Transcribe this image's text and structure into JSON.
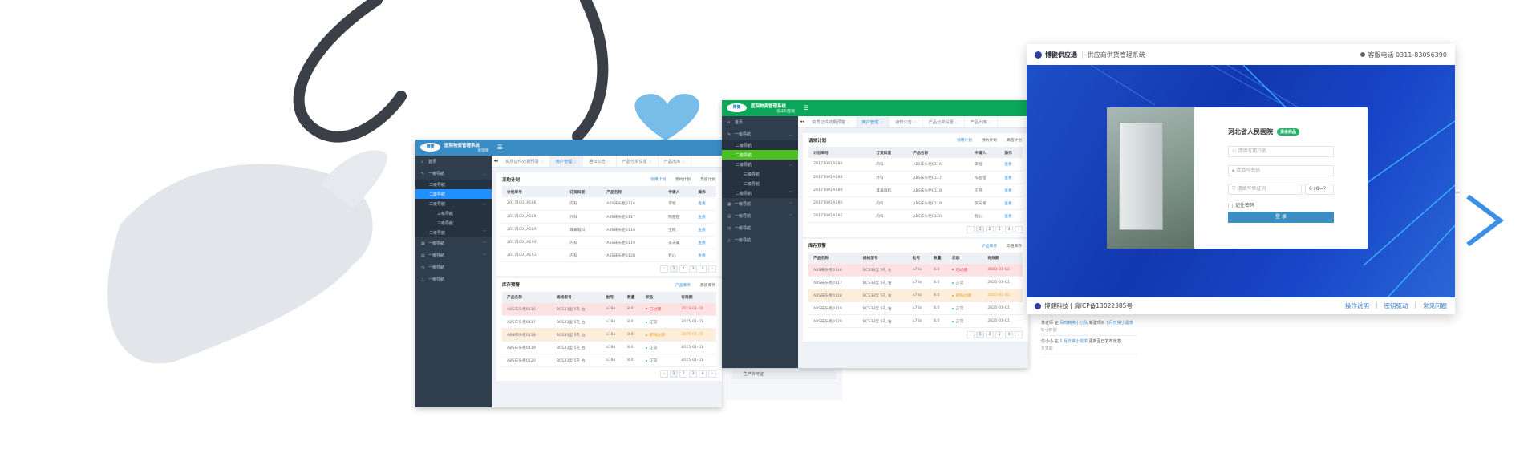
{
  "admin_common": {
    "tabs": [
      "资质证件效期预警",
      "用户管理",
      "通知公告",
      "产品分类设置",
      "产品出库"
    ],
    "active_tab": 1,
    "sidebar": [
      {
        "label": "首页",
        "icon": "home",
        "level": 0
      },
      {
        "label": "一级导航",
        "icon": "edit",
        "level": 1,
        "chevron": "up"
      },
      {
        "label": "二级导航",
        "level": 2
      },
      {
        "label": "二级导航",
        "level": 2,
        "active": true
      },
      {
        "label": "二级导航",
        "level": 2,
        "chevron": "up"
      },
      {
        "label": "三级导航",
        "level": 3
      },
      {
        "label": "三级导航",
        "level": 3
      },
      {
        "label": "二级导航",
        "level": 2,
        "chevron": "down"
      },
      {
        "label": "一级导航",
        "icon": "grid",
        "level": 1,
        "chevron": "down"
      },
      {
        "label": "一级导航",
        "icon": "table",
        "level": 1,
        "chevron": "down"
      },
      {
        "label": "一级导航",
        "icon": "clock",
        "level": 1
      },
      {
        "label": "一级导航",
        "icon": "warning",
        "level": 1
      }
    ],
    "plan_tabs": [
      "领用计划",
      "预约计划",
      "高值计划"
    ],
    "plan_columns": [
      "计划单号",
      "订货科室",
      "产品名称",
      "申请人",
      "操作"
    ],
    "plan_rows": [
      [
        "20171001A186",
        "内科",
        "ABS床头柜0116",
        "李程",
        "查看"
      ],
      [
        "20171001A188",
        "外科",
        "ABS床头柜0117",
        "陈甜甜",
        "查看"
      ],
      [
        "20171001A189",
        "耳鼻喉科",
        "ABS床头柜0118",
        "王晓",
        "查看"
      ],
      [
        "20171001A190",
        "内科",
        "ABS床头柜0119",
        "李天翼",
        "查看"
      ],
      [
        "20171001A191",
        "内科",
        "ABS床头柜0120",
        "程心",
        "查看"
      ]
    ],
    "stock_title": "库存预警",
    "stock_tabs": [
      "产品库存",
      "高值库存"
    ],
    "stock_columns": [
      "产品名称",
      "规格型号",
      "批号",
      "数量",
      "状态",
      "有效期"
    ],
    "stock_rows": [
      {
        "cells": [
          "ABS床头柜0116",
          "BCS33型 5孔 右",
          "o78o",
          "8.0",
          "已过期",
          "2023-01-01"
        ],
        "status": "expired"
      },
      {
        "cells": [
          "ABS床头柜0117",
          "BCS33型 5孔 右",
          "o78o",
          "8.0",
          "正常",
          "2025-01-01"
        ],
        "status": "normal"
      },
      {
        "cells": [
          "ABS床头柜0118",
          "BCS33型 5孔 右",
          "o78o",
          "8.0",
          "即将过期",
          "2025-01-01"
        ],
        "status": "soon"
      },
      {
        "cells": [
          "ABS床头柜0119",
          "BCS33型 5孔 右",
          "o78o",
          "8.0",
          "正常",
          "2025-01-01"
        ],
        "status": "normal"
      },
      {
        "cells": [
          "ABS床头柜0120",
          "BCS33型 5孔 右",
          "o78o",
          "8.0",
          "正常",
          "2025-01-01"
        ],
        "status": "normal"
      }
    ],
    "pager": [
      "‹",
      "1",
      "2",
      "3",
      "4",
      "›"
    ],
    "menu_icon": "☰",
    "collapse_icon": "◂◂"
  },
  "admin_panels": [
    {
      "logo": "博健",
      "system": "医院物资管理系统",
      "subtitle": "管理端",
      "plan_title": "采购计划",
      "colors": {
        "header": "#3a8cc4",
        "active": "#1e90ff"
      }
    },
    {
      "logo": "博健",
      "system": "医院物资管理系统",
      "subtitle": "临床科室端",
      "plan_title": "请领计划",
      "colors": {
        "header": "#0aa858",
        "active": "#4cc021"
      }
    }
  ],
  "login": {
    "brand": "博健供应通",
    "system": "供应商供货管理系统",
    "phone": "客服电话 0311-83056390",
    "hospital": "河北省人民医院",
    "badge": "清余商品",
    "username_placeholder": "请填写用户名",
    "password_placeholder": "请填写密码",
    "captcha_placeholder": "请填写验证码",
    "captcha": "6+8=?",
    "remember": "记住密码",
    "submit": "登 录",
    "footer_company": "博健科技 |",
    "footer_icp": "冀ICP备13022385号",
    "footer_links": [
      "操作说明",
      "密钥驱动",
      "常见问题"
    ]
  },
  "feed": [
    {
      "user": "朱老师",
      "in": "在",
      "target": "凤鸣精英小分队",
      "action": "新建项目",
      "object": "5月日常小需求",
      "time": "5 小时前"
    },
    {
      "user": "付小小",
      "in": "在",
      "target": "5 月日常小需求",
      "action": "更新至已发布状态",
      "object": "",
      "time": "3 天前"
    }
  ],
  "behind_card": {
    "item": "生产许可证"
  }
}
